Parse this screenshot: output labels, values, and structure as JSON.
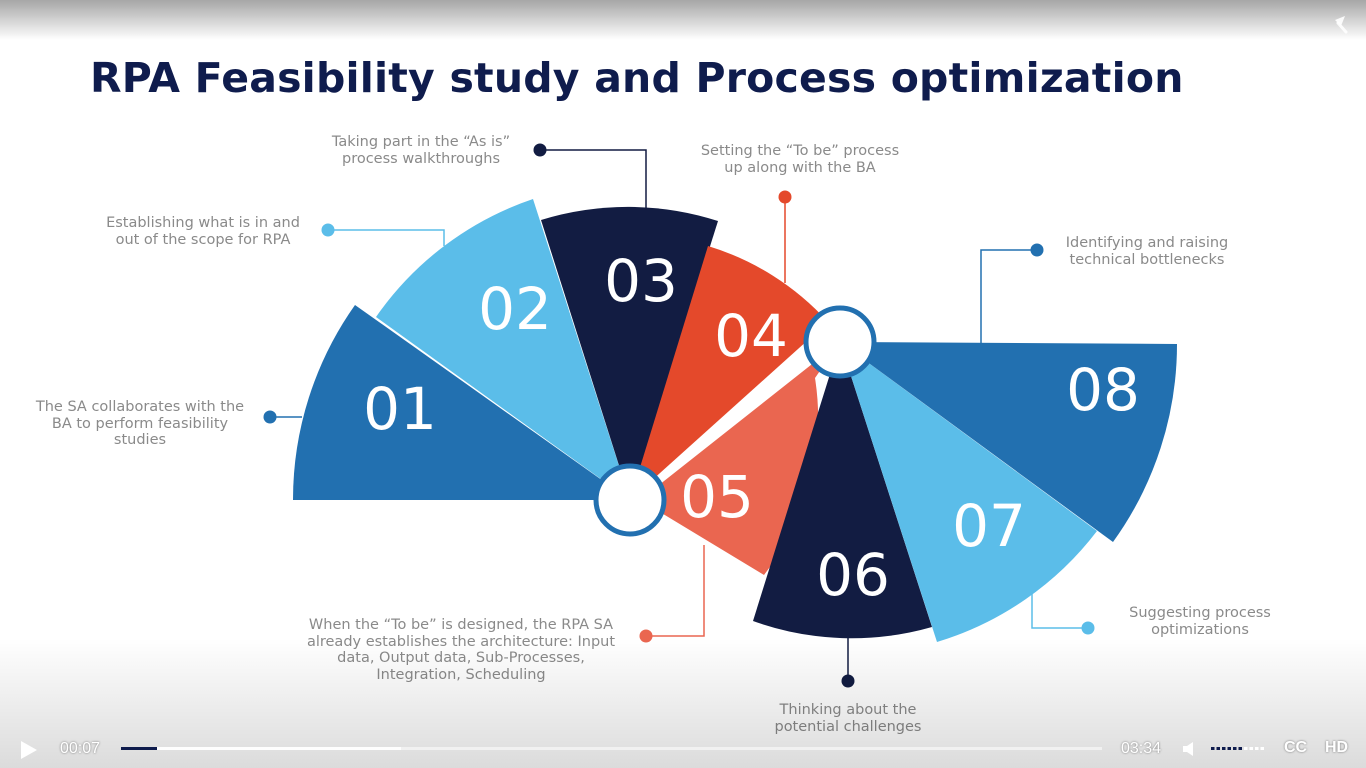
{
  "slide": {
    "title": "RPA Feasibility study and Process optimization",
    "colors": {
      "navy": "#121c42",
      "mid_blue": "#2270b0",
      "light_blue": "#5bbde9",
      "orange_red": "#e4492b",
      "salmon": "#ea6650",
      "title": "#0f1c4d",
      "label_text": "#8a8a8a"
    },
    "segments": [
      {
        "number": "01",
        "color": "mid_blue"
      },
      {
        "number": "02",
        "color": "light_blue"
      },
      {
        "number": "03",
        "color": "navy"
      },
      {
        "number": "04",
        "color": "orange_red"
      },
      {
        "number": "05",
        "color": "salmon"
      },
      {
        "number": "06",
        "color": "navy"
      },
      {
        "number": "07",
        "color": "light_blue"
      },
      {
        "number": "08",
        "color": "mid_blue"
      }
    ],
    "labels": [
      {
        "lines": [
          "The SA collaborates with the",
          "BA to perform feasibility",
          "studies"
        ]
      },
      {
        "lines": [
          "Establishing what is in and",
          "out of the scope for RPA"
        ]
      },
      {
        "lines": [
          "Taking part in the “As is”",
          "process walkthroughs"
        ]
      },
      {
        "lines": [
          "Setting the “To be” process",
          "up along with the BA"
        ]
      },
      {
        "lines": [
          "When the “To be” is designed, the RPA SA",
          "already establishes the architecture: Input",
          "data, Output data, Sub-Processes,",
          "Integration, Scheduling"
        ]
      },
      {
        "lines": [
          "Thinking about the",
          "potential challenges"
        ]
      },
      {
        "lines": [
          "Suggesting process",
          "optimizations"
        ]
      },
      {
        "lines": [
          "Identifying and raising",
          "technical bottlenecks"
        ]
      }
    ]
  },
  "player": {
    "current_time": "00:07",
    "duration": "03:34",
    "progress_fraction": 0.037,
    "buffered_fraction": 0.285,
    "volume_fraction": 0.6,
    "cc_label": "CC",
    "hd_label": "HD",
    "icons": {
      "play": "play-icon",
      "volume": "volume-icon",
      "share": "share-icon"
    }
  }
}
